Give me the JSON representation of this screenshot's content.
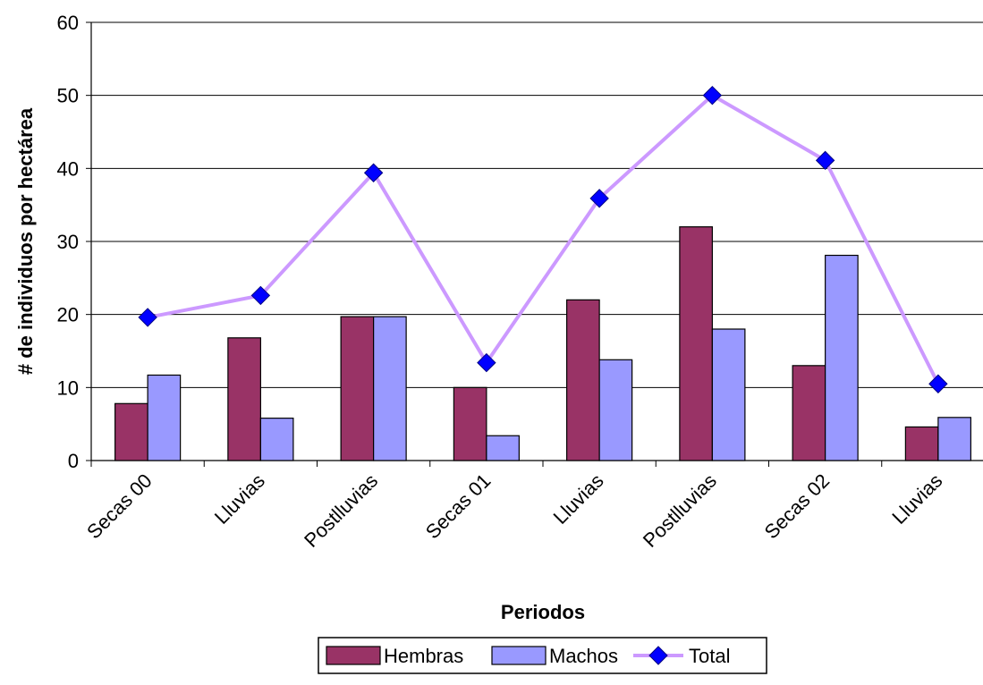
{
  "chart_data": {
    "type": "bar",
    "categories": [
      "Secas 00",
      "Lluvias",
      "Postlluvias",
      "Secas 01",
      "Lluvias",
      "Postlluvias",
      "Secas 02",
      "Lluvias"
    ],
    "series": [
      {
        "name": "Hembras",
        "type": "bar",
        "color": "#993366",
        "values": [
          7.8,
          16.8,
          19.7,
          10.0,
          22.0,
          32.0,
          13.0,
          4.6
        ]
      },
      {
        "name": "Machos",
        "type": "bar",
        "color": "#9999FF",
        "values": [
          11.7,
          5.8,
          19.7,
          3.4,
          13.8,
          18.0,
          28.1,
          5.9
        ]
      },
      {
        "name": "Total",
        "type": "line",
        "color": "#CC99FF",
        "marker_color": "#0000FF",
        "values": [
          19.6,
          22.6,
          39.4,
          13.4,
          35.9,
          50.0,
          41.1,
          10.5
        ]
      }
    ],
    "xlabel": "Periodos",
    "ylabel": "# de individuos por hectárea",
    "ylim": [
      0,
      60
    ],
    "yticks": [
      "0",
      "10",
      "20",
      "30",
      "40",
      "50",
      "60"
    ],
    "grid": true,
    "legend_position": "bottom"
  }
}
